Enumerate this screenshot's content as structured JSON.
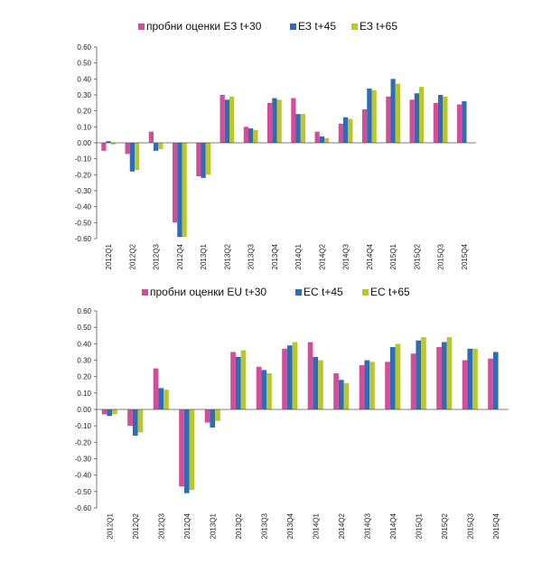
{
  "colors": {
    "pink": "#d24d9b",
    "blue": "#2f6db3",
    "green": "#b8c72d"
  },
  "chart_data": [
    {
      "type": "bar",
      "title": "",
      "xlabel": "",
      "ylabel": "",
      "ylim": [
        -0.6,
        0.6
      ],
      "yticks": [
        "0.60",
        "0.50",
        "0.40",
        "0.30",
        "0.20",
        "0.10",
        "0.00",
        "-0.10",
        "-0.20",
        "-0.30",
        "-0.40",
        "-0.50",
        "-0.60"
      ],
      "legend_position": "top",
      "grid": false,
      "categories": [
        "2012Q1",
        "2012Q2",
        "2012Q3",
        "2012Q4",
        "2013Q1",
        "2013Q2",
        "2013Q3",
        "2013Q4",
        "2014Q1",
        "2014Q2",
        "2014Q3",
        "2014Q4",
        "2015Q1",
        "2015Q2",
        "2015Q3",
        "2015Q4"
      ],
      "series": [
        {
          "name": "пробни оценки ЕЗ t+30",
          "color": "#d24d9b",
          "values": [
            -0.05,
            -0.07,
            0.07,
            -0.5,
            -0.21,
            0.3,
            0.1,
            0.25,
            0.28,
            0.07,
            0.12,
            0.21,
            0.29,
            0.27,
            0.25,
            0.24
          ]
        },
        {
          "name": "ЕЗ t+45",
          "color": "#2f6db3",
          "values": [
            0.01,
            -0.18,
            -0.05,
            -0.59,
            -0.22,
            0.27,
            0.09,
            0.28,
            0.18,
            0.04,
            0.16,
            0.34,
            0.4,
            0.31,
            0.3,
            0.26
          ]
        },
        {
          "name": "ЕЗ t+65",
          "color": "#b8c72d",
          "values": [
            -0.01,
            -0.17,
            -0.04,
            -0.59,
            -0.2,
            0.29,
            0.08,
            0.27,
            0.18,
            0.03,
            0.15,
            0.33,
            0.37,
            0.35,
            0.29,
            null
          ]
        }
      ]
    },
    {
      "type": "bar",
      "title": "",
      "xlabel": "",
      "ylabel": "",
      "ylim": [
        -0.6,
        0.6
      ],
      "yticks": [
        "0.60",
        "0.50",
        "0.40",
        "0.30",
        "0.20",
        "0.10",
        "0.00",
        "-0.10",
        "-0.20",
        "-0.30",
        "-0.40",
        "-0.50",
        "-0.60"
      ],
      "legend_position": "top",
      "grid": false,
      "categories": [
        "2012Q1",
        "2012Q2",
        "2012Q3",
        "2012Q4",
        "2013Q1",
        "2013Q2",
        "2013Q3",
        "2013Q4",
        "2014Q1",
        "2014Q2",
        "2014Q3",
        "2014Q4",
        "2015Q1",
        "2015Q2",
        "2015Q3",
        "2015Q4"
      ],
      "series": [
        {
          "name": "пробни оценки EU t+30",
          "color": "#d24d9b",
          "values": [
            -0.03,
            -0.1,
            0.25,
            -0.47,
            -0.08,
            0.35,
            0.26,
            0.37,
            0.41,
            0.22,
            0.27,
            0.29,
            0.34,
            0.38,
            0.3,
            0.31
          ]
        },
        {
          "name": "ЕС t+45",
          "color": "#2f6db3",
          "values": [
            -0.04,
            -0.16,
            0.13,
            -0.51,
            -0.11,
            0.32,
            0.24,
            0.39,
            0.32,
            0.18,
            0.3,
            0.38,
            0.42,
            0.41,
            0.37,
            0.35
          ]
        },
        {
          "name": "ЕС t+65",
          "color": "#b8c72d",
          "values": [
            -0.03,
            -0.14,
            0.12,
            -0.49,
            -0.07,
            0.36,
            0.22,
            0.41,
            0.3,
            0.16,
            0.29,
            0.4,
            0.44,
            0.44,
            0.37,
            null
          ]
        }
      ]
    }
  ]
}
